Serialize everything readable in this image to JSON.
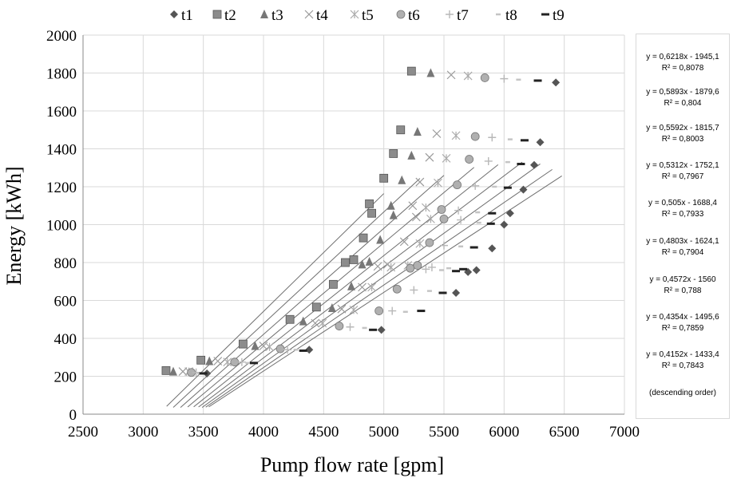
{
  "chart_data": {
    "type": "scatter",
    "title": "",
    "xlabel": "Pump flow rate [gpm]",
    "ylabel": "Energy [kWh]",
    "xlim": [
      2500,
      7000
    ],
    "ylim": [
      0,
      2000
    ],
    "xticks": [
      2500,
      3000,
      3500,
      4000,
      4500,
      5000,
      5500,
      6000,
      6500,
      7000
    ],
    "yticks": [
      0,
      200,
      400,
      600,
      800,
      1000,
      1200,
      1400,
      1600,
      1800,
      2000
    ],
    "grid": "vertical and horizontal major gridlines",
    "legend_position": "top",
    "series": [
      {
        "name": "t1",
        "marker": "diamond",
        "color": "#555555",
        "x": [
          3530,
          4380,
          4980,
          5600,
          5700,
          5770,
          5900,
          6000,
          6050,
          6160,
          6250,
          6300,
          6430
        ],
        "y": [
          215,
          340,
          445,
          640,
          750,
          760,
          875,
          1000,
          1060,
          1185,
          1315,
          1435,
          1750
        ]
      },
      {
        "name": "t2",
        "marker": "square",
        "color": "#8c8c8c",
        "x": [
          3190,
          3480,
          3830,
          4220,
          4440,
          4580,
          4680,
          4750,
          4830,
          4880,
          4900,
          5000,
          5080,
          5140,
          5230
        ],
        "y": [
          230,
          285,
          370,
          500,
          565,
          685,
          800,
          815,
          930,
          1110,
          1060,
          1245,
          1375,
          1500,
          1810
        ]
      },
      {
        "name": "t3",
        "marker": "triangle",
        "color": "#777777",
        "x": [
          3250,
          3550,
          3930,
          4330,
          4570,
          4730,
          4820,
          4880,
          4970,
          5060,
          5080,
          5150,
          5230,
          5280,
          5390
        ],
        "y": [
          225,
          280,
          360,
          490,
          560,
          675,
          790,
          805,
          920,
          1100,
          1050,
          1235,
          1365,
          1490,
          1800
        ]
      },
      {
        "name": "t4",
        "marker": "x",
        "color": "#999999",
        "x": [
          3330,
          3620,
          4000,
          4430,
          4650,
          4820,
          4950,
          5030,
          5170,
          5240,
          5270,
          5300,
          5380,
          5440,
          5560
        ],
        "y": [
          225,
          280,
          360,
          480,
          555,
          670,
          780,
          790,
          910,
          1100,
          1040,
          1225,
          1355,
          1480,
          1790
        ]
      },
      {
        "name": "t5",
        "marker": "asterisk",
        "color": "#aaaaaa",
        "x": [
          3380,
          3700,
          4050,
          4490,
          4750,
          4900,
          5060,
          5200,
          5300,
          5350,
          5390,
          5450,
          5520,
          5600,
          5700
        ],
        "y": [
          225,
          275,
          355,
          480,
          550,
          670,
          775,
          785,
          900,
          1090,
          1030,
          1220,
          1350,
          1470,
          1785
        ]
      },
      {
        "name": "t6",
        "marker": "circle",
        "color": "#b0b0b0",
        "x": [
          3400,
          3760,
          4140,
          4630,
          4960,
          5110,
          5220,
          5280,
          5380,
          5480,
          5500,
          5610,
          5710,
          5760,
          5840
        ],
        "y": [
          220,
          275,
          345,
          465,
          545,
          660,
          770,
          785,
          905,
          1080,
          1030,
          1210,
          1345,
          1465,
          1775
        ]
      },
      {
        "name": "t7",
        "marker": "plus",
        "color": "#b8b8b8",
        "x": [
          3440,
          3820,
          4200,
          4720,
          5070,
          5250,
          5350,
          5400,
          5500,
          5620,
          5640,
          5760,
          5870,
          5900,
          6000
        ],
        "y": [
          220,
          275,
          340,
          460,
          545,
          655,
          765,
          775,
          890,
          1075,
          1025,
          1205,
          1335,
          1460,
          1770
        ]
      },
      {
        "name": "t8",
        "marker": "dash",
        "color": "#c4c4c4",
        "x": [
          3470,
          3870,
          4270,
          4840,
          5180,
          5380,
          5480,
          5540,
          5640,
          5780,
          5790,
          5920,
          6030,
          6050,
          6120
        ],
        "y": [
          215,
          270,
          340,
          455,
          540,
          650,
          760,
          770,
          885,
          1065,
          1010,
          1200,
          1330,
          1450,
          1765
        ]
      },
      {
        "name": "t9",
        "marker": "bar",
        "color": "#222222",
        "x": [
          3500,
          3920,
          4330,
          4910,
          5310,
          5490,
          5600,
          5660,
          5750,
          5900,
          5890,
          6030,
          6140,
          6170,
          6280
        ],
        "y": [
          215,
          270,
          335,
          445,
          545,
          640,
          755,
          765,
          880,
          1060,
          1005,
          1195,
          1320,
          1445,
          1760
        ]
      }
    ],
    "trendlines": [
      {
        "slope": 0.6218,
        "intercept": -1945.1,
        "label": "y = 0,6218x - 1945,1",
        "r2": "R² = 0,8078",
        "x_range": [
          3195,
          5000
        ]
      },
      {
        "slope": 0.5893,
        "intercept": -1879.6,
        "label": "y = 0,5893x - 1879,6",
        "r2": "R² = 0,804",
        "x_range": [
          3250,
          5300
        ]
      },
      {
        "slope": 0.5592,
        "intercept": -1815.7,
        "label": "y = 0,5592x - 1815,7",
        "r2": "R² = 0,8003",
        "x_range": [
          3310,
          5500
        ]
      },
      {
        "slope": 0.5312,
        "intercept": -1752.1,
        "label": "y = 0,5312x - 1752,1",
        "r2": "R² = 0,7967",
        "x_range": [
          3370,
          5750
        ]
      },
      {
        "slope": 0.505,
        "intercept": -1688.4,
        "label": "y = 0,505x - 1688,4",
        "r2": "R² = 0,7933",
        "x_range": [
          3420,
          5950
        ]
      },
      {
        "slope": 0.4803,
        "intercept": -1624.1,
        "label": "y = 0,4803x - 1624,1",
        "r2": "R² = 0,7904",
        "x_range": [
          3460,
          6150
        ]
      },
      {
        "slope": 0.4572,
        "intercept": -1560,
        "label": "y = 0,4572x - 1560",
        "r2": "R² = 0,788",
        "x_range": [
          3490,
          6300
        ]
      },
      {
        "slope": 0.4354,
        "intercept": -1495.6,
        "label": "y = 0,4354x - 1495,6",
        "r2": "R² = 0,7859",
        "x_range": [
          3520,
          6400
        ]
      },
      {
        "slope": 0.4152,
        "intercept": -1433.4,
        "label": "y = 0,4152x - 1433,4",
        "r2": "R² = 0,7843",
        "x_range": [
          3545,
          6480
        ]
      }
    ],
    "trendline_note": "(descending order)"
  }
}
